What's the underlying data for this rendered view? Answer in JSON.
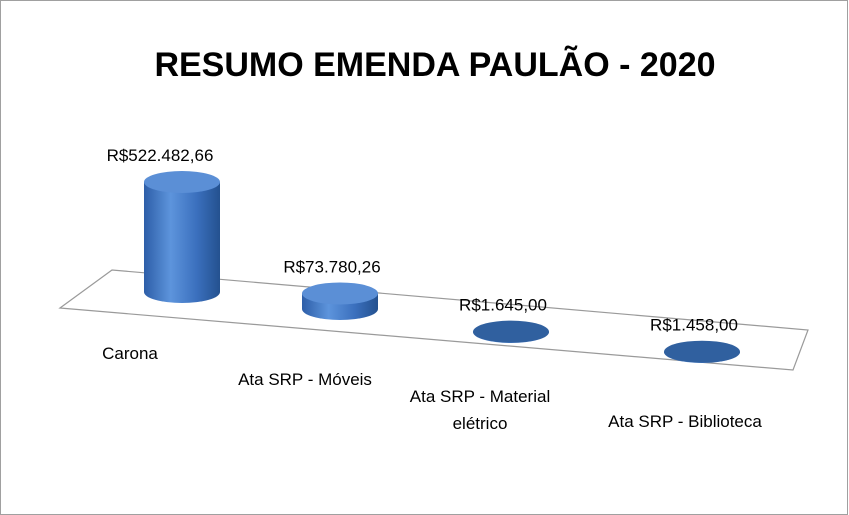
{
  "chart_data": {
    "type": "bar3d-cylinder",
    "title": "RESUMO EMENDA PAULÃO - 2020",
    "categories": [
      "Carona",
      "Ata SRP - Móveis",
      "Ata SRP - Material elétrico",
      "Ata SRP - Biblioteca"
    ],
    "values": [
      522482.66,
      73780.26,
      1645.0,
      1458.0
    ],
    "value_labels": [
      "R$522.482,66",
      "R$73.780,26",
      "R$1.645,00",
      "R$1.458,00"
    ],
    "color": "#3f74c0"
  }
}
